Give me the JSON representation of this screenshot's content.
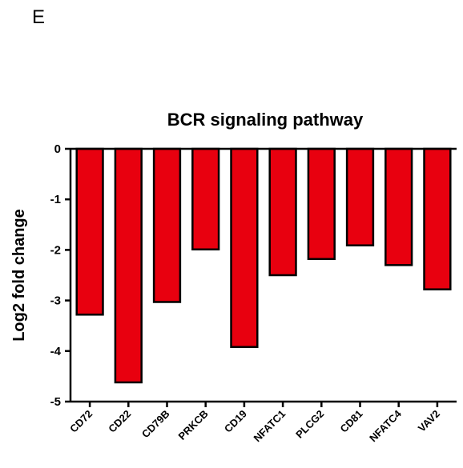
{
  "panel_label": "E",
  "chart_data": {
    "type": "bar",
    "title": "BCR signaling pathway",
    "xlabel": "",
    "ylabel": "Log2 fold change",
    "ylim": [
      -5,
      0
    ],
    "yticks": [
      0,
      -1,
      -2,
      -3,
      -4,
      -5
    ],
    "ytick_labels": [
      "0",
      "-1",
      "-2",
      "-3",
      "-4",
      "-5"
    ],
    "categories": [
      "CD72",
      "CD22",
      "CD79B",
      "PRKCB",
      "CD19",
      "NFATC1",
      "PLCG2",
      "CD81",
      "NFATC4",
      "VAV2"
    ],
    "values": [
      -3.28,
      -4.62,
      -3.03,
      -1.99,
      -3.92,
      -2.5,
      -2.18,
      -1.91,
      -2.3,
      -2.78
    ],
    "bar_color": "#e8000f",
    "bar_edge_color": "#000000",
    "grid": false,
    "legend": "none"
  }
}
